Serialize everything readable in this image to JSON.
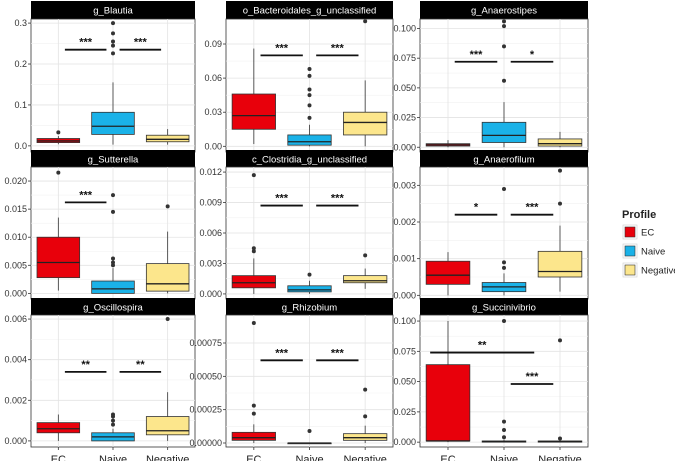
{
  "chart_data": {
    "type": "box",
    "layout": "3x3 facet grid",
    "categories": [
      "EC",
      "Naive",
      "Negative"
    ],
    "legend": {
      "title": "Profile",
      "placement": "right",
      "entries": [
        {
          "label": "EC",
          "color": "#e8000b"
        },
        {
          "label": "Naive",
          "color": "#1ab2e8"
        },
        {
          "label": "Negative",
          "color": "#fce68c"
        }
      ]
    },
    "panels": [
      {
        "title": "g_Blautia",
        "ylim": [
          -0.015,
          0.31
        ],
        "yticks": [
          0.0,
          0.1,
          0.2,
          0.3
        ],
        "ytick_labels": [
          "0.0",
          "0.1",
          "0.2",
          "0.3"
        ],
        "boxes": [
          {
            "category": "EC",
            "q1": 0.008,
            "median": 0.012,
            "q3": 0.018,
            "whisker_low": 0.004,
            "whisker_high": 0.024,
            "outliers": [
              0.033
            ]
          },
          {
            "category": "Naive",
            "q1": 0.028,
            "median": 0.048,
            "q3": 0.082,
            "whisker_low": 0.003,
            "whisker_high": 0.155,
            "outliers": [
              0.226,
              0.245,
              0.255,
              0.275,
              0.3
            ]
          },
          {
            "category": "Negative",
            "q1": 0.01,
            "median": 0.016,
            "q3": 0.026,
            "whisker_low": 0.003,
            "whisker_high": 0.041,
            "outliers": []
          }
        ],
        "significance": [
          {
            "from": "EC",
            "to": "Naive",
            "y": 0.235,
            "label": "***"
          },
          {
            "from": "Naive",
            "to": "Negative",
            "y": 0.235,
            "label": "***"
          }
        ]
      },
      {
        "title": "o_Bacteroidales_g_unclassified",
        "ylim": [
          -0.005,
          0.112
        ],
        "yticks": [
          0.0,
          0.03,
          0.06,
          0.09
        ],
        "ytick_labels": [
          "0.00",
          "0.03",
          "0.06",
          "0.09"
        ],
        "boxes": [
          {
            "category": "EC",
            "q1": 0.015,
            "median": 0.027,
            "q3": 0.046,
            "whisker_low": 0.002,
            "whisker_high": 0.086,
            "outliers": []
          },
          {
            "category": "Naive",
            "q1": 0.001,
            "median": 0.004,
            "q3": 0.01,
            "whisker_low": 0.0,
            "whisker_high": 0.019,
            "outliers": [
              0.025,
              0.036,
              0.045,
              0.05,
              0.062,
              0.068
            ]
          },
          {
            "category": "Negative",
            "q1": 0.01,
            "median": 0.021,
            "q3": 0.03,
            "whisker_low": 0.0,
            "whisker_high": 0.058,
            "outliers": [
              0.11
            ]
          }
        ],
        "significance": [
          {
            "from": "EC",
            "to": "Naive",
            "y": 0.08,
            "label": "***"
          },
          {
            "from": "Naive",
            "to": "Negative",
            "y": 0.08,
            "label": "***"
          }
        ]
      },
      {
        "title": "g_Anaerostipes",
        "ylim": [
          -0.004,
          0.108
        ],
        "yticks": [
          0.0,
          0.025,
          0.05,
          0.075,
          0.1
        ],
        "ytick_labels": [
          "0.000",
          "0.025",
          "0.050",
          "0.075",
          "0.100"
        ],
        "boxes": [
          {
            "category": "EC",
            "q1": 0.001,
            "median": 0.002,
            "q3": 0.003,
            "whisker_low": 0.0,
            "whisker_high": 0.006,
            "outliers": []
          },
          {
            "category": "Naive",
            "q1": 0.004,
            "median": 0.01,
            "q3": 0.021,
            "whisker_low": 0.0,
            "whisker_high": 0.038,
            "outliers": [
              0.056,
              0.085,
              0.102,
              0.106
            ]
          },
          {
            "category": "Negative",
            "q1": 0.001,
            "median": 0.003,
            "q3": 0.007,
            "whisker_low": 0.0,
            "whisker_high": 0.013,
            "outliers": []
          }
        ],
        "significance": [
          {
            "from": "EC",
            "to": "Naive",
            "y": 0.072,
            "label": "***"
          },
          {
            "from": "Naive",
            "to": "Negative",
            "y": 0.072,
            "label": "*"
          }
        ]
      },
      {
        "title": "g_Sutterella",
        "ylim": [
          -0.001,
          0.0225
        ],
        "yticks": [
          0.0,
          0.005,
          0.01,
          0.015,
          0.02
        ],
        "ytick_labels": [
          "0.000",
          "0.005",
          "0.010",
          "0.015",
          "0.020"
        ],
        "boxes": [
          {
            "category": "EC",
            "q1": 0.0028,
            "median": 0.0055,
            "q3": 0.01,
            "whisker_low": 0.0005,
            "whisker_high": 0.0135,
            "outliers": [
              0.0215
            ]
          },
          {
            "category": "Naive",
            "q1": 0.0,
            "median": 0.0008,
            "q3": 0.0022,
            "whisker_low": 0.0,
            "whisker_high": 0.0045,
            "outliers": [
              0.005,
              0.0055,
              0.0062,
              0.0145,
              0.0175
            ]
          },
          {
            "category": "Negative",
            "q1": 0.0004,
            "median": 0.0017,
            "q3": 0.0053,
            "whisker_low": 0.0,
            "whisker_high": 0.011,
            "outliers": [
              0.0155
            ]
          }
        ],
        "significance": [
          {
            "from": "EC",
            "to": "Naive",
            "y": 0.0162,
            "label": "***"
          }
        ]
      },
      {
        "title": "c_Clostridia_g_unclassified",
        "ylim": [
          -0.0005,
          0.0125
        ],
        "yticks": [
          0.0,
          0.003,
          0.006,
          0.009,
          0.012
        ],
        "ytick_labels": [
          "0.000",
          "0.003",
          "0.006",
          "0.009",
          "0.012"
        ],
        "boxes": [
          {
            "category": "EC",
            "q1": 0.0006,
            "median": 0.0011,
            "q3": 0.0018,
            "whisker_low": 0.0,
            "whisker_high": 0.0035,
            "outliers": [
              0.0042,
              0.0045,
              0.0117
            ]
          },
          {
            "category": "Naive",
            "q1": 0.0002,
            "median": 0.0004,
            "q3": 0.0008,
            "whisker_low": 0.0,
            "whisker_high": 0.0013,
            "outliers": [
              0.0019
            ]
          },
          {
            "category": "Negative",
            "q1": 0.0011,
            "median": 0.0013,
            "q3": 0.0018,
            "whisker_low": 0.0005,
            "whisker_high": 0.0025,
            "outliers": [
              0.0038
            ]
          }
        ],
        "significance": [
          {
            "from": "EC",
            "to": "Naive",
            "y": 0.0087,
            "label": "***"
          },
          {
            "from": "Naive",
            "to": "Negative",
            "y": 0.0087,
            "label": "***"
          }
        ]
      },
      {
        "title": "g_Anaerofilum",
        "ylim": [
          -0.0001,
          0.0035
        ],
        "yticks": [
          0.0,
          0.001,
          0.002,
          0.003
        ],
        "ytick_labels": [
          "0.000",
          "0.001",
          "0.002",
          "0.003"
        ],
        "boxes": [
          {
            "category": "EC",
            "q1": 0.0003,
            "median": 0.00055,
            "q3": 0.00093,
            "whisker_low": 0.0,
            "whisker_high": 0.00118,
            "outliers": []
          },
          {
            "category": "Naive",
            "q1": 0.0001,
            "median": 0.00023,
            "q3": 0.00035,
            "whisker_low": 0.0,
            "whisker_high": 0.0006,
            "outliers": [
              0.00075,
              0.0009,
              0.0029
            ]
          },
          {
            "category": "Negative",
            "q1": 0.0005,
            "median": 0.00065,
            "q3": 0.0012,
            "whisker_low": 0.0001,
            "whisker_high": 0.0019,
            "outliers": [
              0.0025,
              0.0034
            ]
          }
        ],
        "significance": [
          {
            "from": "EC",
            "to": "Naive",
            "y": 0.0022,
            "label": "*"
          },
          {
            "from": "Naive",
            "to": "Negative",
            "y": 0.0022,
            "label": "***"
          }
        ]
      },
      {
        "title": "g_Oscillospira",
        "ylim": [
          -0.0003,
          0.0062
        ],
        "yticks": [
          0.0,
          0.002,
          0.004,
          0.006
        ],
        "ytick_labels": [
          "0.000",
          "0.002",
          "0.004",
          "0.006"
        ],
        "boxes": [
          {
            "category": "EC",
            "q1": 0.0004,
            "median": 0.0006,
            "q3": 0.0009,
            "whisker_low": 0.0,
            "whisker_high": 0.0013,
            "outliers": []
          },
          {
            "category": "Naive",
            "q1": 0.0,
            "median": 0.0002,
            "q3": 0.0004,
            "whisker_low": 0.0,
            "whisker_high": 0.0006,
            "outliers": [
              0.0008,
              0.001,
              0.0012,
              0.0013
            ]
          },
          {
            "category": "Negative",
            "q1": 0.0003,
            "median": 0.0005,
            "q3": 0.0012,
            "whisker_low": 0.0,
            "whisker_high": 0.0024,
            "outliers": [
              0.006
            ]
          }
        ],
        "significance": [
          {
            "from": "EC",
            "to": "Naive",
            "y": 0.0034,
            "label": "**"
          },
          {
            "from": "Naive",
            "to": "Negative",
            "y": 0.0034,
            "label": "**"
          }
        ]
      },
      {
        "title": "g_Rhizobium",
        "ylim": [
          -3e-05,
          0.00096
        ],
        "yticks": [
          0.0,
          0.00025,
          0.0005,
          0.00075
        ],
        "ytick_labels": [
          "0.00000",
          "0.00025",
          "0.00050",
          "0.00075"
        ],
        "boxes": [
          {
            "category": "EC",
            "q1": 2e-05,
            "median": 4e-05,
            "q3": 8e-05,
            "whisker_low": 0.0,
            "whisker_high": 0.00014,
            "outliers": [
              0.00022,
              0.00028,
              0.0009
            ]
          },
          {
            "category": "Naive",
            "q1": 0.0,
            "median": 0.0,
            "q3": 0.0,
            "whisker_low": 0.0,
            "whisker_high": 0.0,
            "outliers": [
              9e-05
            ]
          },
          {
            "category": "Negative",
            "q1": 2e-05,
            "median": 4e-05,
            "q3": 7e-05,
            "whisker_low": 0.0,
            "whisker_high": 0.00013,
            "outliers": [
              0.0002,
              0.0004
            ]
          }
        ],
        "significance": [
          {
            "from": "EC",
            "to": "Naive",
            "y": 0.00062,
            "label": "***"
          },
          {
            "from": "Naive",
            "to": "Negative",
            "y": 0.00062,
            "label": "***"
          }
        ]
      },
      {
        "title": "g_Succinivibrio",
        "ylim": [
          -0.004,
          0.105
        ],
        "yticks": [
          0.0,
          0.025,
          0.05,
          0.075,
          0.1
        ],
        "ytick_labels": [
          "0.000",
          "0.025",
          "0.050",
          "0.075",
          "0.100"
        ],
        "boxes": [
          {
            "category": "EC",
            "q1": 0.001,
            "median": 0.001,
            "q3": 0.064,
            "whisker_low": 0.0,
            "whisker_high": 0.1,
            "outliers": []
          },
          {
            "category": "Naive",
            "q1": 0.0,
            "median": 0.0005,
            "q3": 0.001,
            "whisker_low": 0.0,
            "whisker_high": 0.002,
            "outliers": [
              0.004,
              0.01,
              0.017,
              0.1
            ]
          },
          {
            "category": "Negative",
            "q1": 0.0,
            "median": 0.0005,
            "q3": 0.001,
            "whisker_low": 0.0,
            "whisker_high": 0.001,
            "outliers": [
              0.003,
              0.084
            ]
          }
        ],
        "significance": [
          {
            "from": "EC",
            "to": "Naive",
            "y": 0.074,
            "label": "**",
            "span": "EC-Negative"
          },
          {
            "from": "Naive",
            "to": "Negative",
            "y": 0.048,
            "label": "***"
          }
        ]
      }
    ]
  }
}
